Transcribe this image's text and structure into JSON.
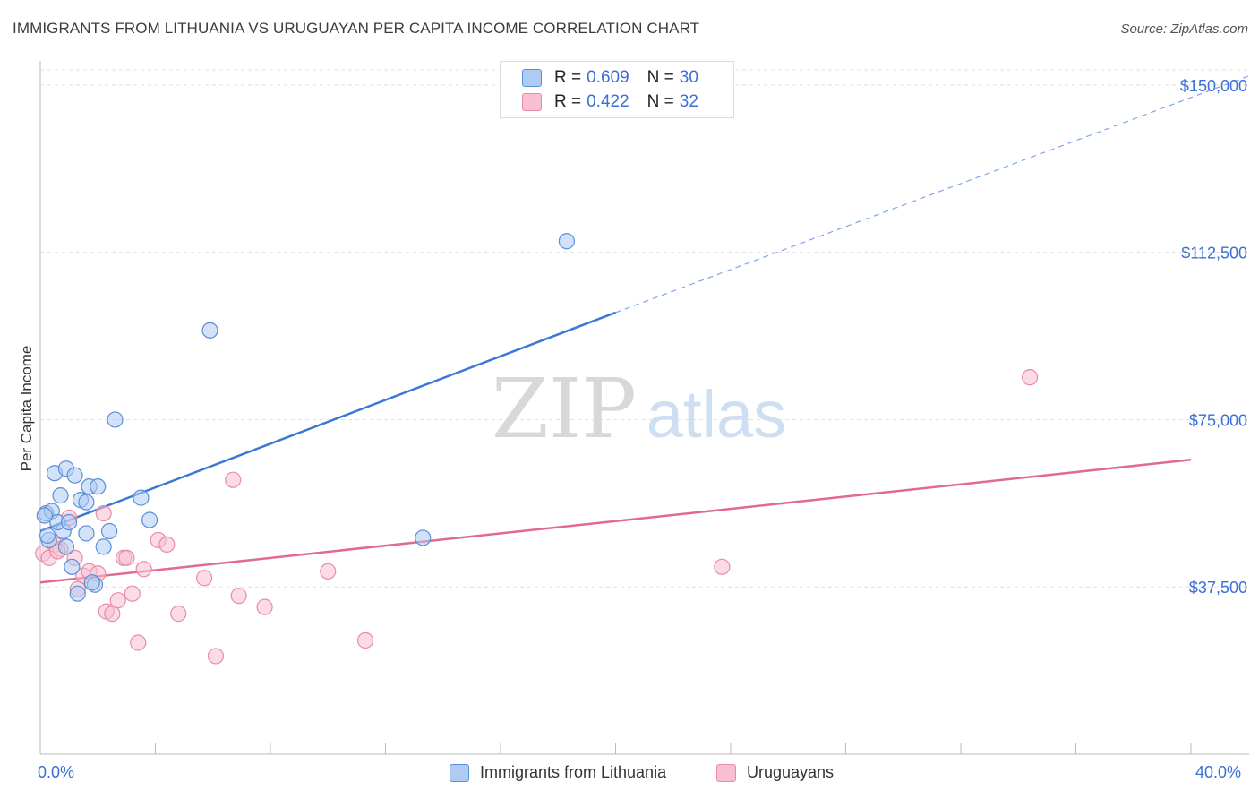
{
  "title": "IMMIGRANTS FROM LITHUANIA VS URUGUAYAN PER CAPITA INCOME CORRELATION CHART",
  "source": "Source: ZipAtlas.com",
  "watermark": {
    "zip": "ZIP",
    "atlas": "atlas"
  },
  "legend": {
    "series1": {
      "r_label": "R = ",
      "r_value": "0.609",
      "n_label": "N = ",
      "n_value": "30"
    },
    "series2": {
      "r_label": "R = ",
      "r_value": "0.422",
      "n_label": "N = ",
      "n_value": "32"
    }
  },
  "x_min_label": "0.0%",
  "x_max_label": "40.0%",
  "chart_data": {
    "type": "scatter",
    "title": "IMMIGRANTS FROM LITHUANIA VS URUGUAYAN PER CAPITA INCOME CORRELATION CHART",
    "xlabel": "",
    "ylabel": "Per Capita Income",
    "xlim": [
      0,
      40
    ],
    "ylim": [
      0,
      155000
    ],
    "y_ticks": [
      37500,
      75000,
      112500,
      150000
    ],
    "y_tick_labels": [
      "$37,500",
      "$75,000",
      "$112,500",
      "$150,000"
    ],
    "x_ticks": [
      0,
      4,
      8,
      12,
      16,
      20,
      24,
      28,
      32,
      36,
      40
    ],
    "grid": true,
    "legend_position": "top-center",
    "series": [
      {
        "name": "Immigrants from Lithuania",
        "color": "#5b8fd9",
        "fill": "#aecbf3",
        "points": [
          [
            0.2,
            54000
          ],
          [
            0.4,
            54500
          ],
          [
            0.3,
            48000
          ],
          [
            0.5,
            63000
          ],
          [
            0.7,
            58000
          ],
          [
            0.8,
            50000
          ],
          [
            0.6,
            52000
          ],
          [
            0.9,
            64000
          ],
          [
            1.0,
            52000
          ],
          [
            1.2,
            62500
          ],
          [
            1.4,
            57000
          ],
          [
            1.6,
            56500
          ],
          [
            1.7,
            60000
          ],
          [
            2.0,
            60000
          ],
          [
            1.6,
            49500
          ],
          [
            2.2,
            46500
          ],
          [
            2.4,
            50000
          ],
          [
            1.1,
            42000
          ],
          [
            1.3,
            36000
          ],
          [
            1.9,
            38000
          ],
          [
            2.6,
            75000
          ],
          [
            3.5,
            57500
          ],
          [
            3.8,
            52500
          ],
          [
            5.9,
            95000
          ],
          [
            13.3,
            48500
          ],
          [
            18.3,
            115000
          ],
          [
            0.25,
            49000
          ],
          [
            0.9,
            46500
          ],
          [
            1.8,
            38500
          ],
          [
            0.15,
            53500
          ]
        ],
        "trendline": {
          "x": [
            0,
            20
          ],
          "y": [
            50000,
            99000
          ],
          "dashed_extension_to": [
            42,
            152000
          ]
        }
      },
      {
        "name": "Uruguayans",
        "color": "#e98ba8",
        "fill": "#f7bfd0",
        "points": [
          [
            0.1,
            45000
          ],
          [
            0.3,
            44000
          ],
          [
            0.5,
            47000
          ],
          [
            0.7,
            46000
          ],
          [
            1.0,
            53000
          ],
          [
            1.2,
            44000
          ],
          [
            1.5,
            40000
          ],
          [
            1.7,
            41000
          ],
          [
            2.2,
            54000
          ],
          [
            2.3,
            32000
          ],
          [
            2.5,
            31500
          ],
          [
            2.7,
            34500
          ],
          [
            2.9,
            44000
          ],
          [
            3.2,
            36000
          ],
          [
            3.4,
            25000
          ],
          [
            3.6,
            41500
          ],
          [
            4.1,
            48000
          ],
          [
            4.4,
            47000
          ],
          [
            4.8,
            31500
          ],
          [
            5.7,
            39500
          ],
          [
            6.1,
            22000
          ],
          [
            6.7,
            61500
          ],
          [
            6.9,
            35500
          ],
          [
            7.8,
            33000
          ],
          [
            10.0,
            41000
          ],
          [
            11.3,
            25500
          ],
          [
            23.7,
            42000
          ],
          [
            34.4,
            84500
          ],
          [
            1.3,
            37000
          ],
          [
            0.6,
            45500
          ],
          [
            2.0,
            40500
          ],
          [
            3.0,
            44000
          ]
        ],
        "trendline": {
          "x": [
            0,
            40
          ],
          "y": [
            38500,
            66000
          ]
        }
      }
    ]
  }
}
